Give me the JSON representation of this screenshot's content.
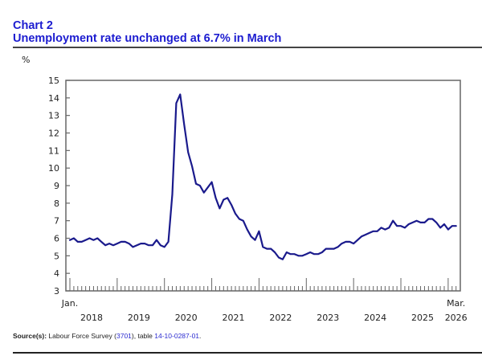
{
  "header": {
    "chart_number": "Chart 2",
    "title": "Unemployment rate unchanged at 6.7% in March"
  },
  "unit_label": "%",
  "source": {
    "label": "Source(s):",
    "text_before": " Labour Force Survey (",
    "survey_id": "3701",
    "text_middle": "), table ",
    "table_id": "14-10-0287-01",
    "text_after": "."
  },
  "colors": {
    "title": "#1c1cd0",
    "line": "#1a1a8c",
    "axis": "#666666",
    "link": "#2b2bd0"
  },
  "chart_data": {
    "type": "line",
    "title": "Unemployment rate unchanged at 6.7% in March",
    "xlabel": "",
    "ylabel": "%",
    "ylim": [
      3,
      15
    ],
    "yticks": [
      3,
      4,
      5,
      6,
      7,
      8,
      9,
      10,
      11,
      12,
      13,
      14,
      15
    ],
    "x_start_label": "Jan.",
    "x_end_label": "Mar.",
    "year_labels": [
      "2018",
      "2019",
      "2020",
      "2021",
      "2022",
      "2023",
      "2024",
      "2025",
      "2026"
    ],
    "x_range": [
      "2018-01",
      "2026-03"
    ],
    "grid": false,
    "legend": "none",
    "series": [
      {
        "name": "Unemployment rate",
        "frequency": "monthly",
        "start": "2018-01",
        "values": [
          5.9,
          6.0,
          5.8,
          5.8,
          5.9,
          6.0,
          5.9,
          6.0,
          5.8,
          5.6,
          5.7,
          5.6,
          5.7,
          5.8,
          5.8,
          5.7,
          5.5,
          5.6,
          5.7,
          5.7,
          5.6,
          5.6,
          5.9,
          5.6,
          5.5,
          5.8,
          8.5,
          13.7,
          14.2,
          12.5,
          10.9,
          10.1,
          9.1,
          9.0,
          8.6,
          8.9,
          9.2,
          8.3,
          7.7,
          8.2,
          8.3,
          7.9,
          7.4,
          7.1,
          7.0,
          6.5,
          6.1,
          5.9,
          6.4,
          5.5,
          5.4,
          5.4,
          5.2,
          4.9,
          4.8,
          5.2,
          5.1,
          5.1,
          5.0,
          5.0,
          5.1,
          5.2,
          5.1,
          5.1,
          5.2,
          5.4,
          5.4,
          5.4,
          5.5,
          5.7,
          5.8,
          5.8,
          5.7,
          5.9,
          6.1,
          6.2,
          6.3,
          6.4,
          6.4,
          6.6,
          6.5,
          6.6,
          7.0,
          6.7,
          6.7,
          6.6,
          6.8,
          6.9,
          7.0,
          6.9,
          6.9,
          7.1,
          7.1,
          6.9,
          6.6,
          6.8,
          6.5,
          6.7,
          6.7
        ]
      }
    ]
  }
}
